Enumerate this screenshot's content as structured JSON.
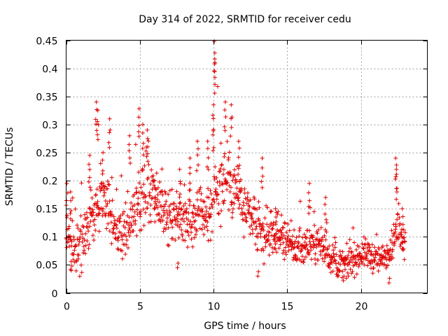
{
  "chart_data": {
    "type": "scatter",
    "title": "Day 314 of 2022, SRMTID for receiver cedu",
    "xlabel": "GPS time / hours",
    "ylabel": "SRMTID / TECUs",
    "xlim": [
      0,
      24.5
    ],
    "ylim": [
      0,
      0.45
    ],
    "xticks": [
      0,
      5,
      10,
      15,
      20
    ],
    "xtick_labels": [
      "0",
      "5",
      "10",
      "15",
      "20"
    ],
    "yticks": [
      0,
      0.05,
      0.1,
      0.15,
      0.2,
      0.25,
      0.3,
      0.35,
      0.4,
      0.45
    ],
    "ytick_labels": [
      "0",
      "0.05",
      "0.1",
      "0.15",
      "0.2",
      "0.25",
      "0.3",
      "0.35",
      "0.4",
      "0.45"
    ],
    "grid": true,
    "marker": "+",
    "marker_color": "#e00000",
    "series": [
      {
        "name": "SRMTID",
        "trend": {
          "x": [
            0.0,
            0.3,
            0.6,
            1.0,
            1.5,
            2.0,
            2.5,
            3.0,
            3.5,
            4.0,
            4.5,
            5.0,
            5.5,
            6.0,
            6.5,
            7.0,
            7.5,
            8.0,
            8.5,
            9.0,
            9.5,
            10.0,
            10.5,
            11.0,
            11.5,
            12.0,
            12.5,
            13.0,
            13.5,
            14.0,
            14.5,
            15.0,
            15.5,
            16.0,
            16.5,
            17.0,
            17.5,
            18.0,
            18.5,
            19.0,
            19.5,
            20.0,
            20.5,
            21.0,
            21.5,
            22.0,
            22.5,
            22.9
          ],
          "y": [
            0.11,
            0.09,
            0.07,
            0.09,
            0.12,
            0.15,
            0.17,
            0.15,
            0.11,
            0.1,
            0.13,
            0.17,
            0.18,
            0.16,
            0.14,
            0.13,
            0.14,
            0.13,
            0.13,
            0.15,
            0.14,
            0.17,
            0.2,
            0.21,
            0.19,
            0.15,
            0.13,
            0.11,
            0.1,
            0.1,
            0.1,
            0.09,
            0.08,
            0.08,
            0.09,
            0.09,
            0.08,
            0.06,
            0.05,
            0.05,
            0.06,
            0.07,
            0.07,
            0.06,
            0.06,
            0.08,
            0.11,
            0.1
          ]
        },
        "spread": {
          "x": [
            0.0,
            2.0,
            4.5,
            5.5,
            7.0,
            9.0,
            10.0,
            11.0,
            12.0,
            14.0,
            16.0,
            18.0,
            20.0,
            22.0,
            22.9
          ],
          "y": [
            0.05,
            0.06,
            0.05,
            0.07,
            0.05,
            0.05,
            0.08,
            0.08,
            0.06,
            0.04,
            0.04,
            0.03,
            0.03,
            0.03,
            0.04
          ]
        },
        "peaks": [
          {
            "x": 0.05,
            "y": 0.195
          },
          {
            "x": 0.3,
            "y": 0.18
          },
          {
            "x": 1.6,
            "y": 0.245
          },
          {
            "x": 2.05,
            "y": 0.34
          },
          {
            "x": 2.15,
            "y": 0.325
          },
          {
            "x": 2.5,
            "y": 0.25
          },
          {
            "x": 2.95,
            "y": 0.31
          },
          {
            "x": 4.3,
            "y": 0.28
          },
          {
            "x": 4.95,
            "y": 0.328
          },
          {
            "x": 5.2,
            "y": 0.3
          },
          {
            "x": 5.5,
            "y": 0.29
          },
          {
            "x": 6.0,
            "y": 0.2
          },
          {
            "x": 7.7,
            "y": 0.22
          },
          {
            "x": 8.4,
            "y": 0.24
          },
          {
            "x": 8.9,
            "y": 0.27
          },
          {
            "x": 9.6,
            "y": 0.27
          },
          {
            "x": 10.05,
            "y": 0.448
          },
          {
            "x": 10.1,
            "y": 0.41
          },
          {
            "x": 10.0,
            "y": 0.335
          },
          {
            "x": 10.8,
            "y": 0.34
          },
          {
            "x": 11.2,
            "y": 0.335
          },
          {
            "x": 11.7,
            "y": 0.27
          },
          {
            "x": 13.3,
            "y": 0.24
          },
          {
            "x": 14.2,
            "y": 0.15
          },
          {
            "x": 16.5,
            "y": 0.195
          },
          {
            "x": 17.6,
            "y": 0.17
          },
          {
            "x": 22.35,
            "y": 0.24
          },
          {
            "x": 22.4,
            "y": 0.22
          },
          {
            "x": 22.8,
            "y": 0.15
          }
        ],
        "troughs": [
          {
            "x": 7.55,
            "y": 0.045
          },
          {
            "x": 13.0,
            "y": 0.03
          },
          {
            "x": 18.8,
            "y": 0.022
          },
          {
            "x": 21.9,
            "y": 0.018
          },
          {
            "x": 0.35,
            "y": 0.04
          }
        ],
        "x_extent": [
          0.0,
          23.0
        ],
        "sample_step_hours": 0.02
      }
    ]
  }
}
